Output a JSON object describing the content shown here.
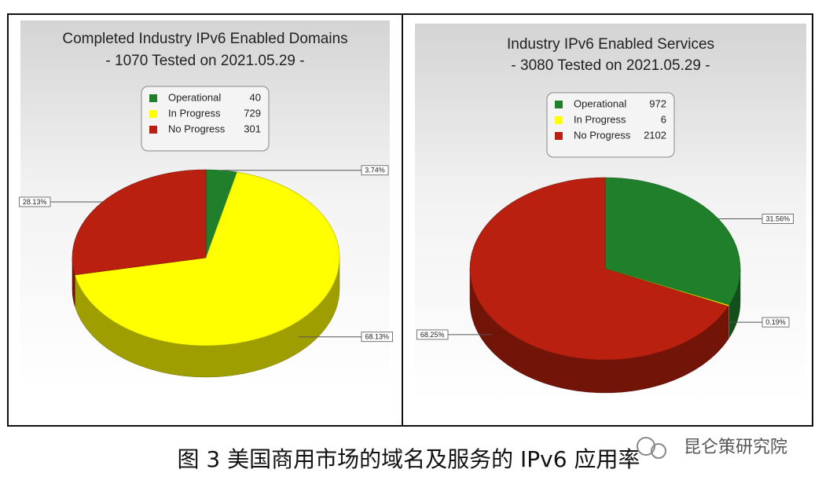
{
  "chart_data": [
    {
      "type": "pie",
      "title": "Completed Industry IPv6 Enabled Domains",
      "subtitle": "- 1070 Tested on 2021.05.29 -",
      "categories": [
        "Operational",
        "In Progress",
        "No Progress"
      ],
      "values": [
        3.74,
        68.13,
        28.13
      ],
      "value_labels": [
        "3.74%",
        "68.13%",
        "28.13%"
      ],
      "counts": [
        40,
        729,
        301
      ],
      "colors": [
        "#1f7f2a",
        "#ffff00",
        "#b9200f"
      ]
    },
    {
      "type": "pie",
      "title": "Industry IPv6 Enabled Services",
      "subtitle": "- 3080 Tested on 2021.05.29 -",
      "categories": [
        "Operational",
        "In Progress",
        "No Progress"
      ],
      "values": [
        31.56,
        0.19,
        68.25
      ],
      "value_labels": [
        "31.56%",
        "0.19%",
        "68.25%"
      ],
      "counts": [
        972,
        6,
        2102
      ],
      "colors": [
        "#1f7f2a",
        "#ffff00",
        "#b9200f"
      ]
    }
  ],
  "caption": "图 3 美国商用市场的域名及服务的 IPv6 应用率",
  "watermark": "昆仑策研究院"
}
